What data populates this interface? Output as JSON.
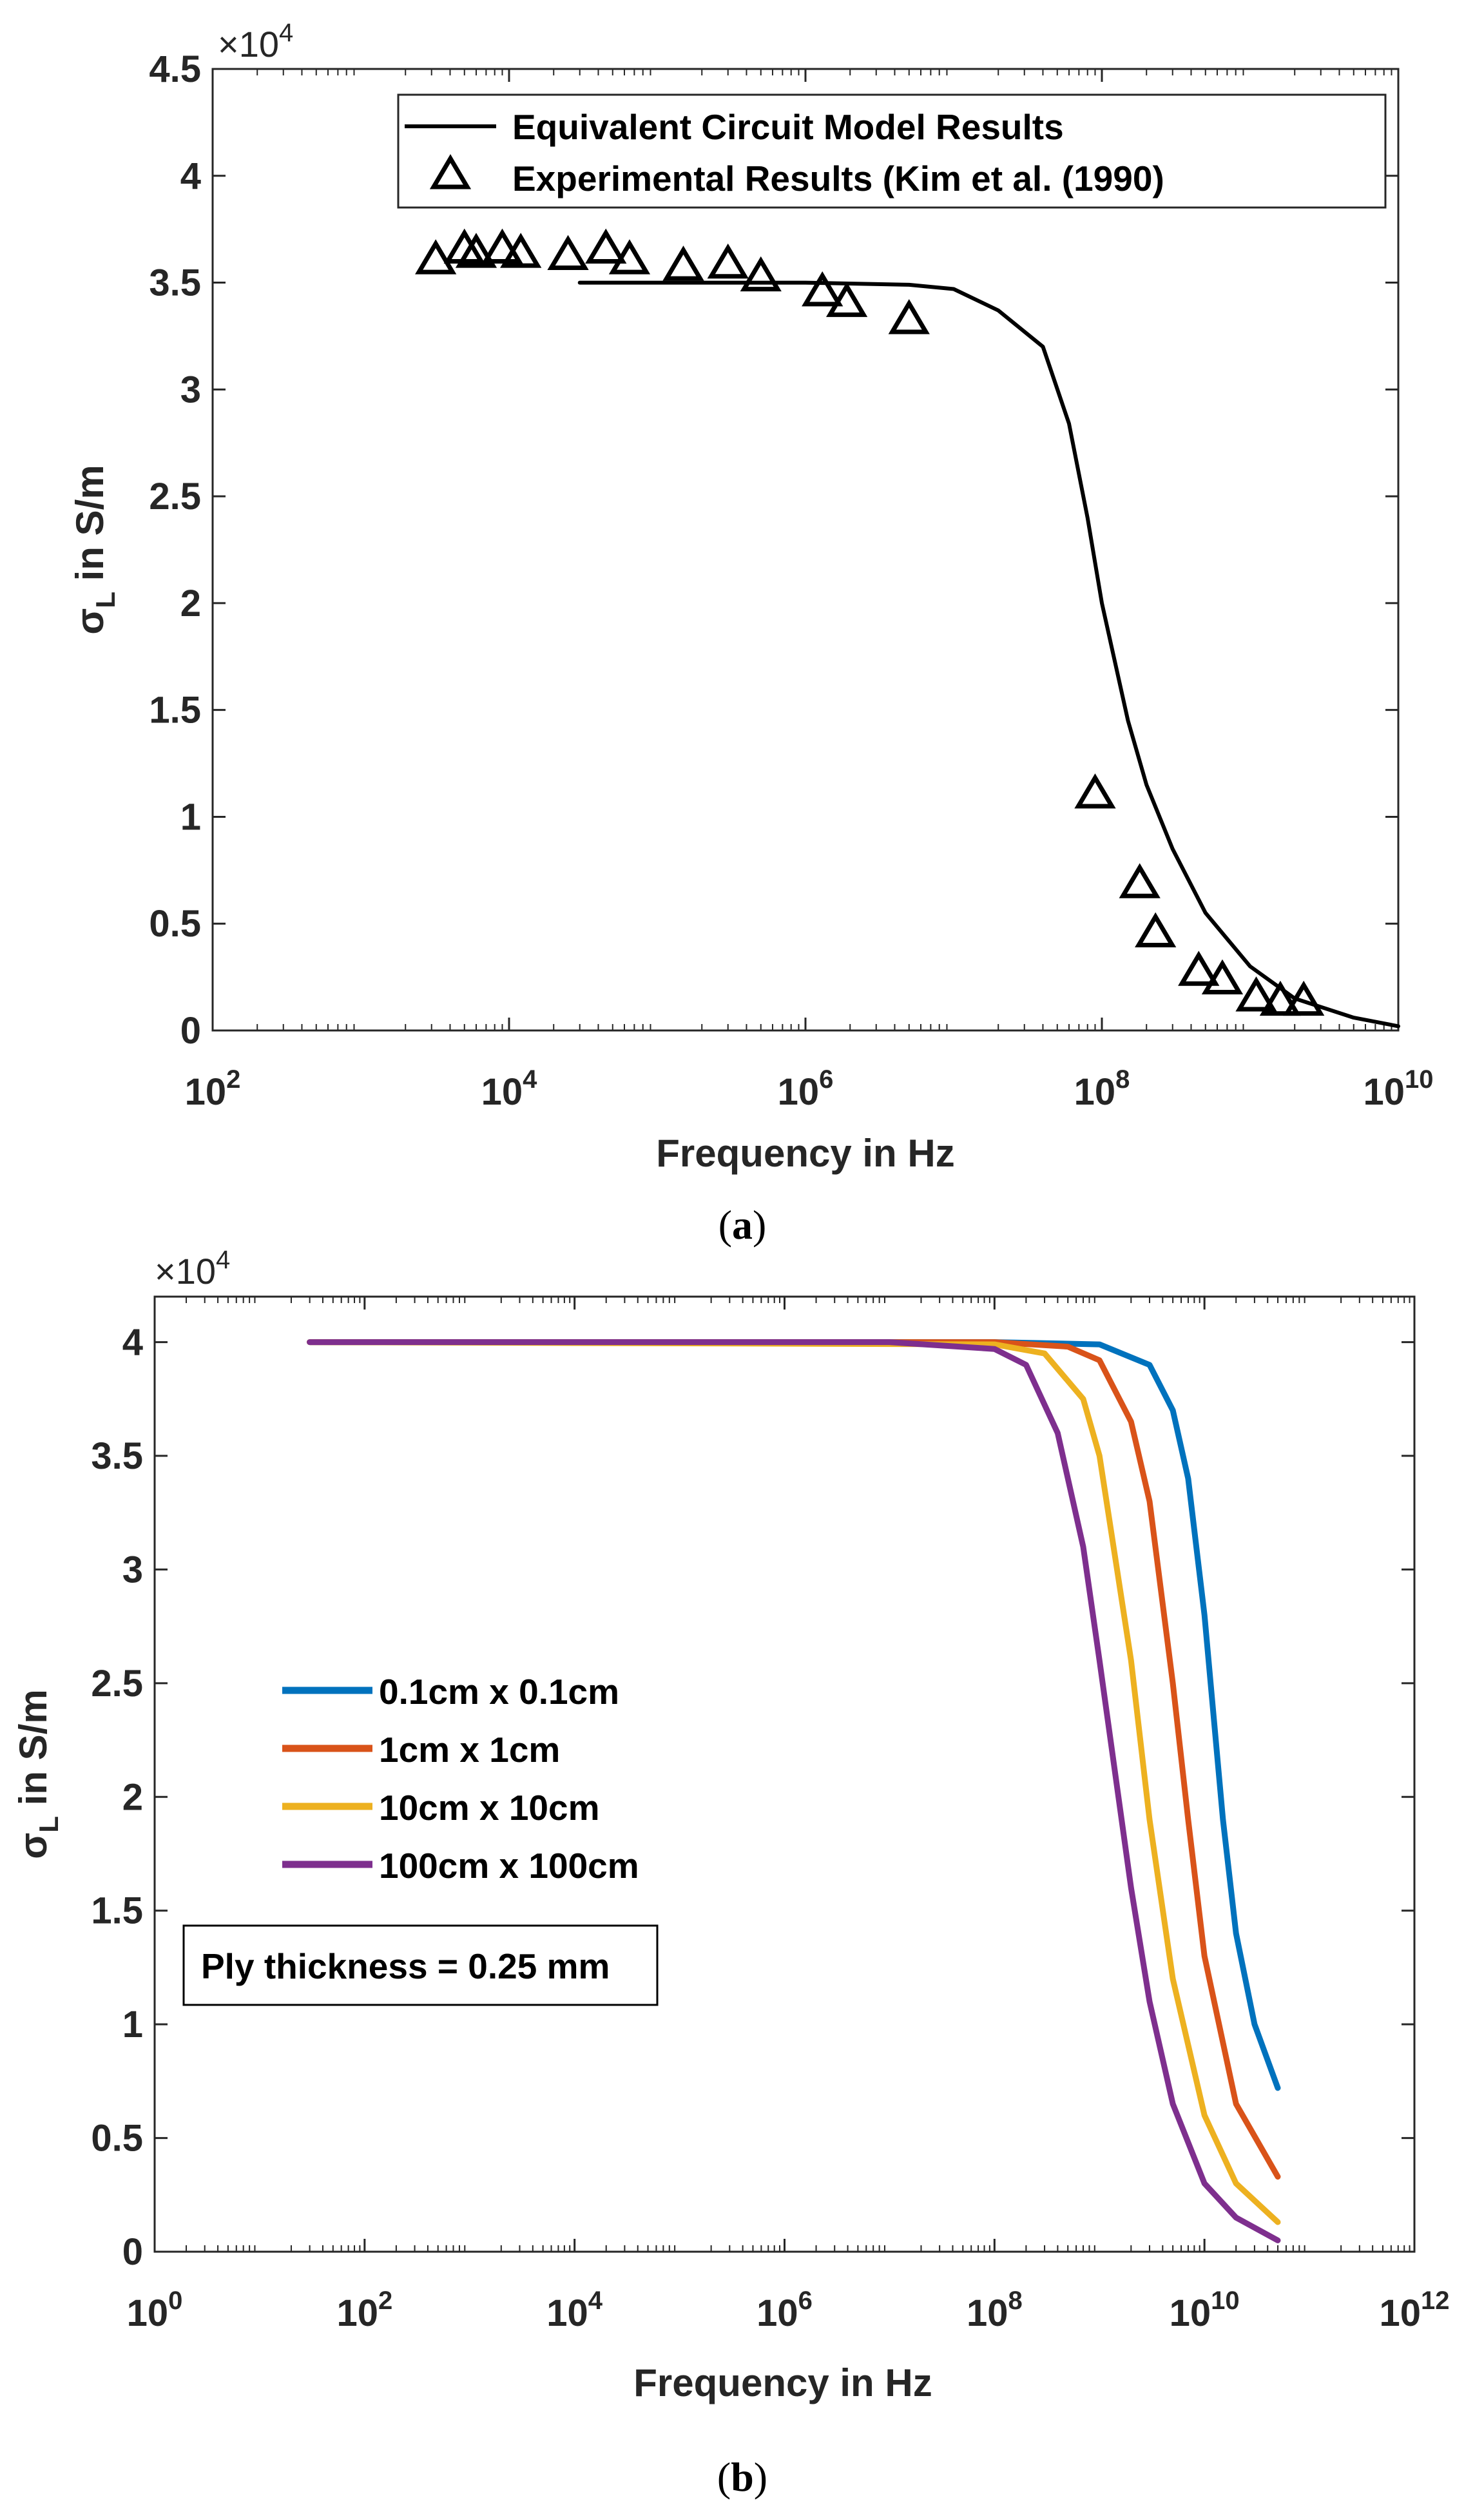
{
  "chart_data": [
    {
      "type": "line",
      "panel_label": "a",
      "title": "",
      "xlabel": "Frequency in Hz",
      "ylabel_main": "σ",
      "ylabel_sub": "L",
      "ylabel_rest": " in S/m",
      "multiplier_prefix": "×10",
      "multiplier_exp": "4",
      "xscale": "log",
      "xlim": [
        100,
        10000000000
      ],
      "ylim": [
        0,
        4.5
      ],
      "x_ticks": [
        {
          "value": 100,
          "base": "10",
          "exp": "2"
        },
        {
          "value": 10000,
          "base": "10",
          "exp": "4"
        },
        {
          "value": 1000000,
          "base": "10",
          "exp": "6"
        },
        {
          "value": 100000000,
          "base": "10",
          "exp": "8"
        },
        {
          "value": 10000000000,
          "base": "10",
          "exp": "10"
        }
      ],
      "y_ticks": [
        {
          "value": 0,
          "label": "0"
        },
        {
          "value": 0.5,
          "label": "0.5"
        },
        {
          "value": 1,
          "label": "1"
        },
        {
          "value": 1.5,
          "label": "1.5"
        },
        {
          "value": 2,
          "label": "2"
        },
        {
          "value": 2.5,
          "label": "2.5"
        },
        {
          "value": 3,
          "label": "3"
        },
        {
          "value": 3.5,
          "label": "3.5"
        },
        {
          "value": 4,
          "label": "4"
        },
        {
          "value": 4.5,
          "label": "4.5"
        }
      ],
      "legend_position": "top-right",
      "series": [
        {
          "name": "Equivalent Circuit Model Results",
          "kind": "line",
          "color": "#000000",
          "x": [
            30000,
            100000,
            1000000,
            5000000,
            10000000,
            20000000,
            40000000,
            60000000,
            80000000,
            100000000,
            150000000,
            200000000,
            300000000,
            500000000,
            1000000000,
            2000000000,
            5000000000,
            10000000000
          ],
          "y": [
            3.5,
            3.5,
            3.5,
            3.49,
            3.47,
            3.37,
            3.2,
            2.84,
            2.4,
            2.0,
            1.45,
            1.15,
            0.85,
            0.55,
            0.3,
            0.15,
            0.06,
            0.02
          ]
        },
        {
          "name": "Experimental Results (Kim et al. (1990)",
          "kind": "triangle-markers",
          "color": "#000000",
          "x": [
            3200,
            5000,
            6000,
            9000,
            12000,
            25000,
            45000,
            65000,
            150000,
            300000,
            500000,
            1300000,
            1900000,
            5000000,
            90000000,
            180000000,
            230000000,
            450000000,
            650000000,
            1100000000,
            1600000000,
            2300000000
          ],
          "y": [
            3.6,
            3.65,
            3.63,
            3.65,
            3.63,
            3.62,
            3.65,
            3.6,
            3.57,
            3.58,
            3.52,
            3.45,
            3.4,
            3.32,
            1.1,
            0.68,
            0.45,
            0.27,
            0.23,
            0.15,
            0.13,
            0.13
          ]
        }
      ]
    },
    {
      "type": "line",
      "panel_label": "b",
      "title": "",
      "xlabel": "Frequency in Hz",
      "ylabel_main": "σ",
      "ylabel_sub": "L",
      "ylabel_rest": " in S/m",
      "multiplier_prefix": "×10",
      "multiplier_exp": "4",
      "xscale": "log",
      "xlim": [
        1,
        1000000000000
      ],
      "ylim": [
        0,
        4.2
      ],
      "x_ticks": [
        {
          "value": 1,
          "base": "10",
          "exp": "0"
        },
        {
          "value": 100,
          "base": "10",
          "exp": "2"
        },
        {
          "value": 10000,
          "base": "10",
          "exp": "4"
        },
        {
          "value": 1000000,
          "base": "10",
          "exp": "6"
        },
        {
          "value": 100000000,
          "base": "10",
          "exp": "8"
        },
        {
          "value": 10000000000,
          "base": "10",
          "exp": "10"
        },
        {
          "value": 1000000000000,
          "base": "10",
          "exp": "12"
        }
      ],
      "y_ticks": [
        {
          "value": 0,
          "label": "0"
        },
        {
          "value": 0.5,
          "label": "0.5"
        },
        {
          "value": 1,
          "label": "1"
        },
        {
          "value": 1.5,
          "label": "1.5"
        },
        {
          "value": 2,
          "label": "2"
        },
        {
          "value": 2.5,
          "label": "2.5"
        },
        {
          "value": 3,
          "label": "3"
        },
        {
          "value": 3.5,
          "label": "3.5"
        },
        {
          "value": 4,
          "label": "4"
        }
      ],
      "legend_position": "center-left",
      "annotation": "Ply thickness = 0.25 mm",
      "series": [
        {
          "name": "0.1cm x 0.1cm",
          "color": "#0072BD",
          "x": [
            30,
            100000000,
            1000000000,
            3000000000,
            5000000000,
            7000000000,
            10000000000,
            15000000000,
            20000000000,
            30000000000,
            50000000000
          ],
          "y": [
            4.0,
            4.0,
            3.99,
            3.9,
            3.7,
            3.4,
            2.8,
            1.9,
            1.4,
            1.0,
            0.72
          ]
        },
        {
          "name": "1cm x 1cm",
          "color": "#D95319",
          "x": [
            30,
            100000000,
            500000000,
            1000000000,
            2000000000,
            3000000000,
            5000000000,
            7000000000,
            10000000000,
            20000000000,
            50000000000
          ],
          "y": [
            4.0,
            4.0,
            3.98,
            3.92,
            3.65,
            3.3,
            2.5,
            1.9,
            1.3,
            0.65,
            0.33
          ]
        },
        {
          "name": "10cm x 10cm",
          "color": "#EDB120",
          "x": [
            30,
            100000000,
            300000000,
            700000000,
            1000000000,
            2000000000,
            3000000000,
            5000000000,
            10000000000,
            20000000000,
            50000000000
          ],
          "y": [
            4.0,
            3.99,
            3.95,
            3.75,
            3.5,
            2.6,
            1.9,
            1.2,
            0.6,
            0.3,
            0.13
          ]
        },
        {
          "name": "100cm x 100cm",
          "color": "#7E2F8E",
          "x": [
            30,
            10000000,
            100000000,
            200000000,
            400000000,
            700000000,
            1000000000,
            2000000000,
            3000000000,
            5000000000,
            10000000000,
            20000000000,
            50000000000
          ],
          "y": [
            4.0,
            4.0,
            3.97,
            3.9,
            3.6,
            3.1,
            2.6,
            1.6,
            1.1,
            0.65,
            0.3,
            0.15,
            0.05
          ]
        }
      ]
    }
  ]
}
